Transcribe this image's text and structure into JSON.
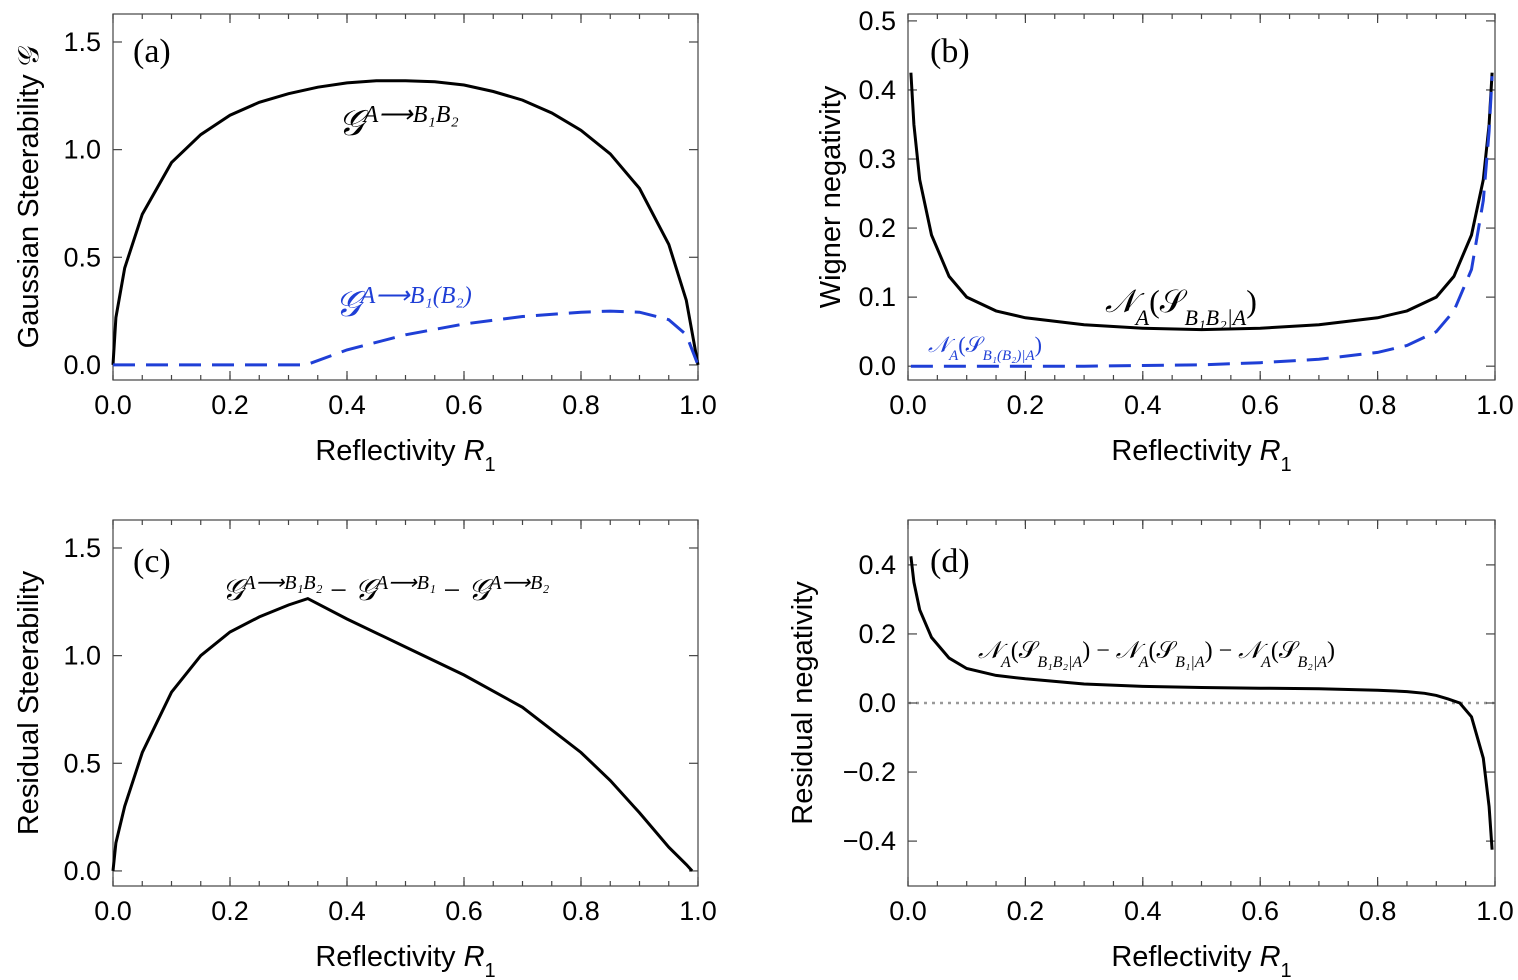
{
  "chart_data": [
    {
      "id": "a",
      "type": "line",
      "panel_label": "(a)",
      "xlabel": "Reflectivity R",
      "xlabel_sub": "1",
      "ylabel": "Gaussian Steerability 𝒢",
      "xlim": [
        0,
        1
      ],
      "ylim": [
        -0.07,
        1.63
      ],
      "xticks": [
        0.0,
        0.2,
        0.4,
        0.6,
        0.8,
        1.0
      ],
      "xtick_labels": [
        "0.0",
        "0.2",
        "0.4",
        "0.6",
        "0.8",
        "1.0"
      ],
      "yticks": [
        0.0,
        0.5,
        1.0,
        1.5
      ],
      "ytick_labels": [
        "0.0",
        "0.5",
        "1.0",
        "1.5"
      ],
      "series": [
        {
          "name": "G^{A→B1B2}",
          "style": "solid",
          "color": "#000000",
          "x": [
            0.0,
            0.005,
            0.02,
            0.05,
            0.1,
            0.15,
            0.2,
            0.25,
            0.3,
            0.35,
            0.4,
            0.45,
            0.5,
            0.55,
            0.6,
            0.65,
            0.7,
            0.75,
            0.8,
            0.85,
            0.9,
            0.95,
            0.98,
            1.0
          ],
          "y": [
            0.0,
            0.22,
            0.45,
            0.7,
            0.94,
            1.07,
            1.16,
            1.22,
            1.26,
            1.29,
            1.31,
            1.32,
            1.32,
            1.315,
            1.3,
            1.27,
            1.23,
            1.17,
            1.09,
            0.98,
            0.82,
            0.56,
            0.3,
            0.0
          ]
        },
        {
          "name": "G^{A→B1(B2)}",
          "style": "dashed",
          "color": "#1f3fd6",
          "x": [
            0.0,
            0.1,
            0.2,
            0.33,
            0.4,
            0.5,
            0.6,
            0.7,
            0.8,
            0.85,
            0.9,
            0.95,
            0.98,
            1.0
          ],
          "y": [
            0.0,
            0.0,
            0.0,
            0.0,
            0.07,
            0.14,
            0.19,
            0.225,
            0.245,
            0.25,
            0.245,
            0.21,
            0.14,
            0.0
          ]
        }
      ],
      "annotations": [
        {
          "base": "𝒢",
          "sup": "A⟶B₁B₂",
          "color": "#000000"
        },
        {
          "base": "𝒢",
          "sup": "A⟶B₁(B₂)",
          "color": "#1f3fd6"
        }
      ]
    },
    {
      "id": "b",
      "type": "line",
      "panel_label": "(b)",
      "xlabel": "Reflectivity R",
      "xlabel_sub": "1",
      "ylabel": "Wigner negativity",
      "xlim": [
        0,
        1
      ],
      "ylim": [
        -0.02,
        0.51
      ],
      "xticks": [
        0.0,
        0.2,
        0.4,
        0.6,
        0.8,
        1.0
      ],
      "xtick_labels": [
        "0.0",
        "0.2",
        "0.4",
        "0.6",
        "0.8",
        "1.0"
      ],
      "yticks": [
        0.0,
        0.1,
        0.2,
        0.3,
        0.4,
        0.5
      ],
      "ytick_labels": [
        "0.0",
        "0.1",
        "0.2",
        "0.3",
        "0.4",
        "0.5"
      ],
      "series": [
        {
          "name": "N_A(S_{B1B2|A})",
          "style": "solid",
          "color": "#000000",
          "x": [
            0.005,
            0.01,
            0.02,
            0.04,
            0.07,
            0.1,
            0.15,
            0.2,
            0.3,
            0.4,
            0.5,
            0.6,
            0.7,
            0.8,
            0.85,
            0.9,
            0.93,
            0.96,
            0.98,
            0.99,
            0.995
          ],
          "y": [
            0.425,
            0.35,
            0.27,
            0.19,
            0.13,
            0.1,
            0.08,
            0.07,
            0.06,
            0.055,
            0.053,
            0.055,
            0.06,
            0.07,
            0.08,
            0.1,
            0.13,
            0.19,
            0.27,
            0.35,
            0.425
          ]
        },
        {
          "name": "N_A(S_{B1(B2)|A})",
          "style": "dashed",
          "color": "#1f3fd6",
          "x": [
            0.005,
            0.1,
            0.2,
            0.3,
            0.4,
            0.5,
            0.6,
            0.7,
            0.8,
            0.85,
            0.9,
            0.93,
            0.96,
            0.98,
            0.99,
            0.995
          ],
          "y": [
            0.0,
            0.0,
            0.0,
            0.0,
            0.001,
            0.002,
            0.005,
            0.01,
            0.02,
            0.03,
            0.05,
            0.08,
            0.14,
            0.24,
            0.34,
            0.42
          ]
        }
      ],
      "annotations": [
        {
          "text": "𝒩",
          "sub": "A",
          "body": "(𝒮",
          "sub2": "B₁B₂|A",
          "close": ")",
          "color": "#000000"
        },
        {
          "text": "𝒩",
          "sub": "A",
          "body": "(𝒮",
          "sub2": "B₁(B₂)|A",
          "close": ")",
          "color": "#1f3fd6"
        }
      ]
    },
    {
      "id": "c",
      "type": "line",
      "panel_label": "(c)",
      "xlabel": "Reflectivity R",
      "xlabel_sub": "1",
      "ylabel": "Residual Steerability",
      "xlim": [
        0,
        1
      ],
      "ylim": [
        -0.07,
        1.63
      ],
      "xticks": [
        0.0,
        0.2,
        0.4,
        0.6,
        0.8,
        1.0
      ],
      "xtick_labels": [
        "0.0",
        "0.2",
        "0.4",
        "0.6",
        "0.8",
        "1.0"
      ],
      "yticks": [
        0.0,
        0.5,
        1.0,
        1.5
      ],
      "ytick_labels": [
        "0.0",
        "0.5",
        "1.0",
        "1.5"
      ],
      "series": [
        {
          "name": "residual steerability",
          "style": "solid",
          "color": "#000000",
          "x": [
            0.0,
            0.005,
            0.02,
            0.05,
            0.1,
            0.15,
            0.2,
            0.25,
            0.3,
            0.333,
            0.4,
            0.5,
            0.6,
            0.7,
            0.8,
            0.85,
            0.9,
            0.95,
            0.98,
            0.99
          ],
          "y": [
            0.0,
            0.13,
            0.3,
            0.55,
            0.83,
            1.0,
            1.11,
            1.18,
            1.235,
            1.265,
            1.17,
            1.04,
            0.91,
            0.76,
            0.55,
            0.42,
            0.27,
            0.11,
            0.03,
            0.0
          ]
        }
      ],
      "annotations": [
        {
          "terms": [
            "𝒢",
            "A⟶B₁B₂",
            "𝒢",
            "A⟶B₁",
            "𝒢",
            "A⟶B₂"
          ],
          "color": "#000000"
        }
      ]
    },
    {
      "id": "d",
      "type": "line",
      "panel_label": "(d)",
      "xlabel": "Reflectivity R",
      "xlabel_sub": "1",
      "ylabel": "Residual negativity",
      "xlim": [
        0,
        1
      ],
      "ylim": [
        -0.53,
        0.53
      ],
      "xticks": [
        0.0,
        0.2,
        0.4,
        0.6,
        0.8,
        1.0
      ],
      "xtick_labels": [
        "0.0",
        "0.2",
        "0.4",
        "0.6",
        "0.8",
        "1.0"
      ],
      "yticks": [
        -0.4,
        -0.2,
        0.0,
        0.2,
        0.4
      ],
      "ytick_labels": [
        "−0.4",
        "−0.2",
        "0.0",
        "0.2",
        "0.4"
      ],
      "zero_line": true,
      "series": [
        {
          "name": "residual negativity",
          "style": "solid",
          "color": "#000000",
          "x": [
            0.005,
            0.01,
            0.02,
            0.04,
            0.07,
            0.1,
            0.15,
            0.2,
            0.3,
            0.4,
            0.5,
            0.6,
            0.7,
            0.8,
            0.85,
            0.88,
            0.9,
            0.92,
            0.94,
            0.96,
            0.98,
            0.99,
            0.995
          ],
          "y": [
            0.425,
            0.35,
            0.27,
            0.19,
            0.13,
            0.1,
            0.08,
            0.07,
            0.055,
            0.048,
            0.045,
            0.043,
            0.041,
            0.037,
            0.033,
            0.028,
            0.022,
            0.012,
            0.0,
            -0.04,
            -0.16,
            -0.3,
            -0.425
          ]
        }
      ],
      "annotations": [
        {
          "text": "𝒩_A(𝒮_{B₁B₂|A}) − 𝒩_A(𝒮_{B₁|A}) − 𝒩_A(𝒮_{B₂|A})",
          "color": "#000000"
        }
      ]
    }
  ]
}
